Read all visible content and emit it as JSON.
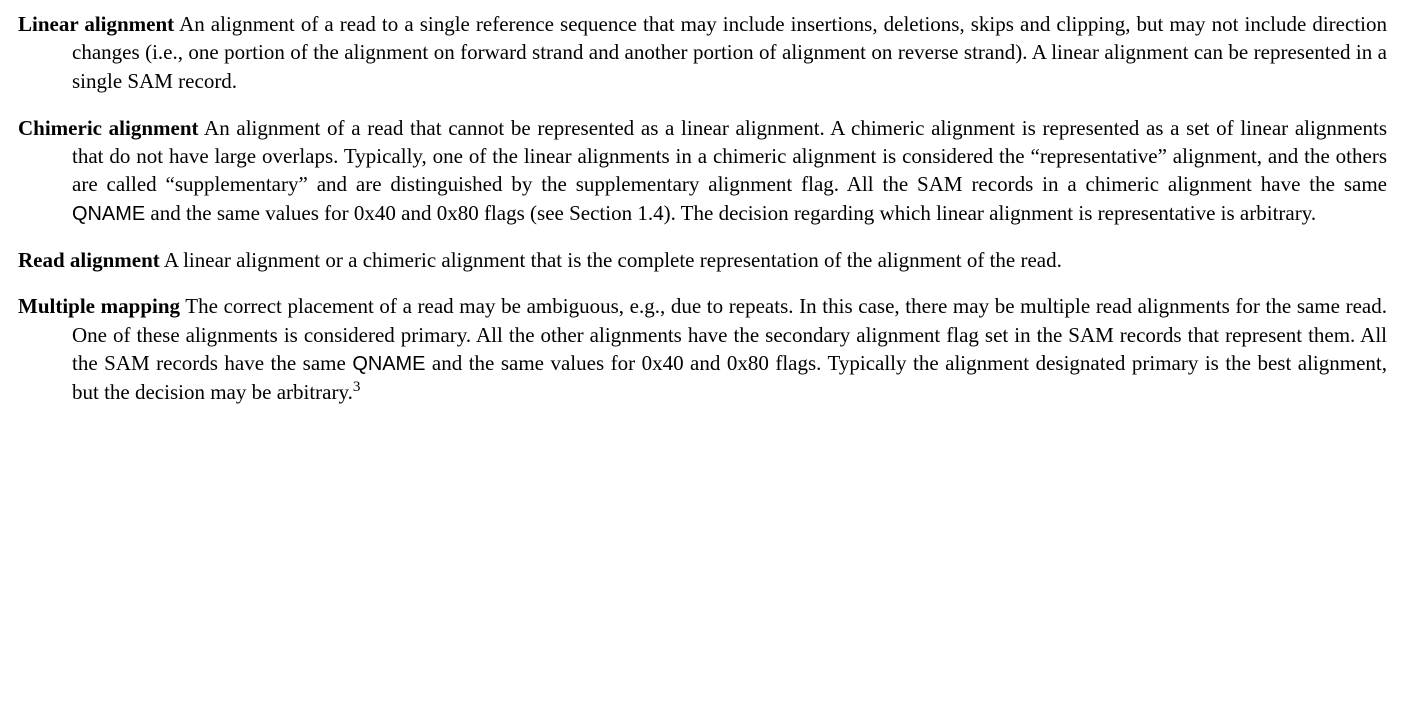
{
  "definitions": [
    {
      "term": "Linear alignment",
      "body_pre": " An alignment of a read to a single reference sequence that may include insertions, deletions, skips and clipping, but may not include direction changes (i.e., one portion of the alignment on forward strand and another portion of alignment on reverse strand). A linear alignment can be represented in a single SAM record.",
      "qname": "",
      "body_post": "",
      "footnote": ""
    },
    {
      "term": "Chimeric alignment",
      "body_pre": " An alignment of a read that cannot be represented as a linear alignment. A chimeric alignment is represented as a set of linear alignments that do not have large overlaps. Typically, one of the linear alignments in a chimeric alignment is considered the “representative” alignment, and the others are called “supplementary” and are distinguished by the supplementary alignment flag. All the SAM records in a chimeric alignment have the same ",
      "qname": "QNAME",
      "body_post": " and the same values for 0x40 and 0x80 flags (see Section 1.4). The decision regarding which linear alignment is representative is arbitrary.",
      "footnote": ""
    },
    {
      "term": "Read alignment",
      "body_pre": " A linear alignment or a chimeric alignment that is the complete representation of the alignment of the read.",
      "qname": "",
      "body_post": "",
      "footnote": ""
    },
    {
      "term": "Multiple mapping",
      "body_pre": " The correct placement of a read may be ambiguous, e.g., due to repeats. In this case, there may be multiple read alignments for the same read. One of these alignments is considered primary. All the other alignments have the secondary alignment flag set in the SAM records that represent them. All the SAM records have the same ",
      "qname": "QNAME",
      "body_post": " and the same values for 0x40 and 0x80 flags. Typically the alignment designated primary is the best alignment, but the decision may be arbitrary.",
      "footnote": "3"
    }
  ]
}
